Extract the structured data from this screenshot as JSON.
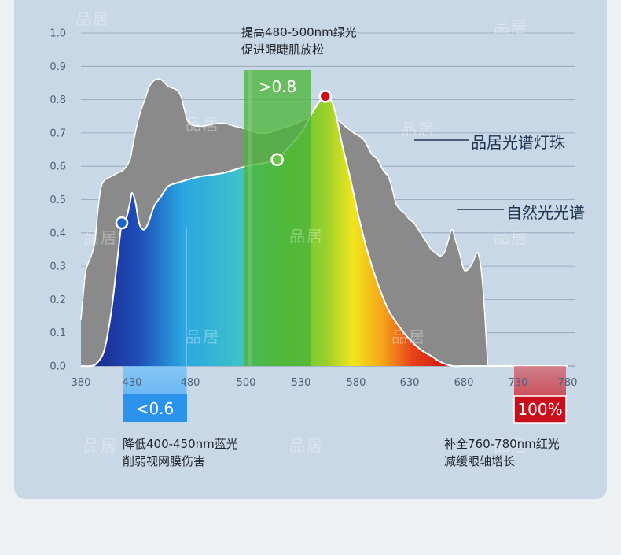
{
  "chart_data": {
    "type": "area",
    "xlabel": "",
    "ylabel": "",
    "xlim": [
      380,
      780
    ],
    "ylim": [
      0,
      1.0
    ],
    "grid": true,
    "x_ticks": [
      "380",
      "430",
      "480",
      "500",
      "530",
      "580",
      "630",
      "680",
      "730",
      "780"
    ],
    "y_ticks": [
      "0.0",
      "0.1",
      "0.2",
      "0.3",
      "0.4",
      "0.5",
      "0.6",
      "0.7",
      "0.8",
      "0.9",
      "1.0"
    ],
    "series": [
      {
        "name": "自然光光谱",
        "color": "#8a8a8a",
        "points": [
          [
            380,
            0.14
          ],
          [
            384,
            0.27
          ],
          [
            386,
            0.3
          ],
          [
            390,
            0.33
          ],
          [
            392,
            0.35
          ],
          [
            394,
            0.38
          ],
          [
            397,
            0.48
          ],
          [
            400,
            0.54
          ],
          [
            404,
            0.56
          ],
          [
            410,
            0.57
          ],
          [
            416,
            0.58
          ],
          [
            422,
            0.59
          ],
          [
            428,
            0.62
          ],
          [
            430,
            0.65
          ],
          [
            434,
            0.72
          ],
          [
            437,
            0.76
          ],
          [
            441,
            0.8
          ],
          [
            445,
            0.84
          ],
          [
            450,
            0.86
          ],
          [
            455,
            0.86
          ],
          [
            461,
            0.84
          ],
          [
            468,
            0.83
          ],
          [
            472,
            0.81
          ],
          [
            475,
            0.77
          ],
          [
            479,
            0.73
          ],
          [
            484,
            0.72
          ],
          [
            491,
            0.73
          ],
          [
            496,
            0.72
          ],
          [
            501,
            0.71
          ],
          [
            506,
            0.7
          ],
          [
            512,
            0.7
          ],
          [
            517,
            0.71
          ],
          [
            523,
            0.72
          ],
          [
            528,
            0.73
          ],
          [
            534,
            0.74
          ],
          [
            540,
            0.74
          ],
          [
            546,
            0.75
          ],
          [
            555,
            0.75
          ],
          [
            563,
            0.74
          ],
          [
            570,
            0.72
          ],
          [
            578,
            0.7
          ],
          [
            587,
            0.68
          ],
          [
            594,
            0.64
          ],
          [
            600,
            0.62
          ],
          [
            605,
            0.59
          ],
          [
            610,
            0.57
          ],
          [
            614,
            0.53
          ],
          [
            617,
            0.49
          ],
          [
            621,
            0.47
          ],
          [
            625,
            0.46
          ],
          [
            630,
            0.44
          ],
          [
            634,
            0.43
          ],
          [
            638,
            0.41
          ],
          [
            642,
            0.39
          ],
          [
            646,
            0.37
          ],
          [
            650,
            0.35
          ],
          [
            654,
            0.34
          ],
          [
            658,
            0.33
          ],
          [
            662,
            0.34
          ],
          [
            666,
            0.38
          ],
          [
            669,
            0.41
          ],
          [
            672,
            0.38
          ],
          [
            676,
            0.34
          ],
          [
            680,
            0.29
          ],
          [
            684,
            0.29
          ],
          [
            688,
            0.31
          ],
          [
            692,
            0.34
          ],
          [
            694,
            0.33
          ],
          [
            696,
            0.29
          ],
          [
            698,
            0.22
          ],
          [
            700,
            0.12
          ],
          [
            702,
            0.0
          ]
        ]
      },
      {
        "name": "品居光谱灯珠",
        "points": [
          [
            380,
            0.0
          ],
          [
            390,
            0.0
          ],
          [
            396,
            0.01
          ],
          [
            403,
            0.05
          ],
          [
            410,
            0.17
          ],
          [
            416,
            0.33
          ],
          [
            420,
            0.43
          ],
          [
            424,
            0.44
          ],
          [
            428,
            0.49
          ],
          [
            430,
            0.52
          ],
          [
            433,
            0.49
          ],
          [
            436,
            0.43
          ],
          [
            440,
            0.41
          ],
          [
            444,
            0.43
          ],
          [
            449,
            0.48
          ],
          [
            455,
            0.51
          ],
          [
            461,
            0.54
          ],
          [
            469,
            0.55
          ],
          [
            478,
            0.56
          ],
          [
            484,
            0.57
          ],
          [
            492,
            0.58
          ],
          [
            500,
            0.6
          ],
          [
            510,
            0.61
          ],
          [
            517,
            0.62
          ],
          [
            522,
            0.65
          ],
          [
            530,
            0.7
          ],
          [
            540,
            0.76
          ],
          [
            548,
            0.8
          ],
          [
            552,
            0.81
          ],
          [
            557,
            0.8
          ],
          [
            562,
            0.75
          ],
          [
            567,
            0.67
          ],
          [
            575,
            0.56
          ],
          [
            583,
            0.44
          ],
          [
            591,
            0.34
          ],
          [
            600,
            0.25
          ],
          [
            610,
            0.17
          ],
          [
            620,
            0.12
          ],
          [
            630,
            0.08
          ],
          [
            640,
            0.05
          ],
          [
            650,
            0.03
          ],
          [
            660,
            0.01
          ],
          [
            670,
            0.0
          ],
          [
            680,
            0.0
          ],
          [
            690,
            0.0
          ],
          [
            700,
            0.0
          ]
        ]
      }
    ],
    "highlights": [
      {
        "label": ">0.8",
        "range_nm": [
          480,
          500
        ]
      },
      {
        "label": "<0.6",
        "range_nm": [
          400,
          450
        ]
      },
      {
        "label": "100%",
        "range_nm": [
          760,
          780
        ]
      }
    ]
  },
  "legend": {
    "pinju": "品居光谱灯珠",
    "natural": "自然光光谱"
  },
  "badges": {
    "green": ">0.8",
    "blue": "<0.6",
    "red": "100%"
  },
  "notes": {
    "green_line1": "提高480-500nm绿光",
    "green_line2": "促进眼睫肌放松",
    "blue_line1": "降低400-450nm蓝光",
    "blue_line2": "削弱视网膜伤害",
    "red_line1": "补全760-780nm红光",
    "red_line2": "减缓眼轴增长"
  },
  "watermark": "品居"
}
